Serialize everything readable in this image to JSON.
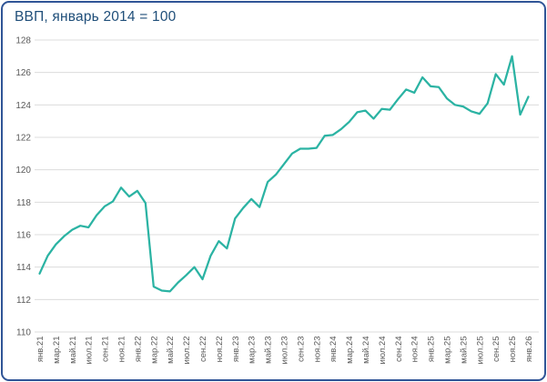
{
  "window": {
    "border_color": "#2F5496",
    "background_color": "#FFFFFF"
  },
  "title": "ВВП, январь 2014 = 100",
  "colors": {
    "title_text": "#1F4E79",
    "line": "#2BB3A3",
    "gridline": "#DCDCDC",
    "tick_label": "#595959"
  },
  "chart_data": {
    "type": "line",
    "title": "ВВП, январь 2014 = 100",
    "grid": "horizontal",
    "legend": "none",
    "ylim": [
      110,
      128
    ],
    "y_ticks": [
      128,
      126,
      124,
      122,
      120,
      118,
      116,
      114,
      112,
      110
    ],
    "x_tick_labels": [
      "янв.21",
      "мар.21",
      "май.21",
      "июл.21",
      "сен.21",
      "ноя.21",
      "янв.22",
      "мар.22",
      "май.22",
      "июл.22",
      "сен.22",
      "ноя.22",
      "янв.23",
      "мар.23",
      "май.23",
      "июл.23",
      "сен.23",
      "ноя.23",
      "янв.24",
      "мар.24",
      "май.24",
      "июл.24",
      "сен.24",
      "ноя.24",
      "янв.25",
      "мар.25",
      "май.25",
      "июл.25",
      "сен.25",
      "ноя.25",
      "янв.26"
    ],
    "x": [
      "янв.21",
      "фев.21",
      "мар.21",
      "апр.21",
      "май.21",
      "июн.21",
      "июл.21",
      "авг.21",
      "сен.21",
      "окт.21",
      "ноя.21",
      "дек.21",
      "янв.22",
      "фев.22",
      "мар.22",
      "апр.22",
      "май.22",
      "июн.22",
      "июл.22",
      "авг.22",
      "сен.22",
      "окт.22",
      "ноя.22",
      "дек.22",
      "янв.23",
      "фев.23",
      "мар.23",
      "апр.23",
      "май.23",
      "июн.23",
      "июл.23",
      "авг.23",
      "сен.23",
      "окт.23",
      "ноя.23",
      "дек.23",
      "янв.24",
      "фев.24",
      "мар.24",
      "апр.24",
      "май.24",
      "июн.24",
      "июл.24",
      "авг.24",
      "сен.24",
      "окт.24",
      "ноя.24",
      "дек.24",
      "янв.25",
      "фев.25",
      "мар.25",
      "апр.25",
      "май.25",
      "июн.25",
      "июл.25",
      "авг.25",
      "сен.25",
      "окт.25",
      "ноя.25",
      "дек.25",
      "янв.26"
    ],
    "series": [
      {
        "name": "ВВП, январь 2014 = 100",
        "color": "#2BB3A3",
        "values": [
          113.6,
          114.7,
          115.4,
          115.9,
          116.3,
          116.55,
          116.45,
          117.2,
          117.75,
          118.05,
          118.9,
          118.35,
          118.7,
          117.95,
          112.8,
          112.55,
          112.5,
          113.05,
          113.5,
          114.0,
          113.25,
          114.7,
          115.6,
          115.15,
          117.0,
          117.65,
          118.2,
          117.7,
          119.25,
          119.7,
          120.35,
          121.0,
          121.3,
          121.3,
          121.35,
          122.1,
          122.15,
          122.5,
          122.95,
          123.55,
          123.65,
          123.15,
          123.75,
          123.7,
          124.35,
          124.95,
          124.75,
          125.7,
          125.15,
          125.1,
          124.4,
          124.0,
          123.9,
          123.6,
          123.45,
          124.1,
          125.9,
          125.25,
          127.0,
          123.4,
          124.5
        ]
      }
    ]
  }
}
